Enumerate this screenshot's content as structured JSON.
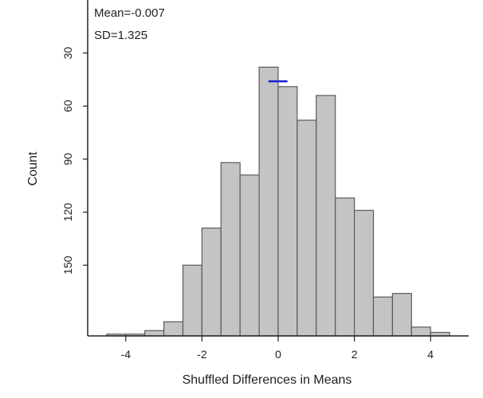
{
  "chart_data": {
    "type": "bar",
    "subtype": "histogram",
    "title": "",
    "xlabel": "Shuffled Differences in Means",
    "ylabel": "Count",
    "xlim": [
      -5,
      5
    ],
    "ylim": [
      0,
      190
    ],
    "y_axis_reversed": true,
    "x_ticks": [
      "-4",
      "-2",
      "0",
      "2",
      "4"
    ],
    "y_ticks": [
      "30",
      "60",
      "90",
      "120",
      "150"
    ],
    "bin_width": 0.5,
    "bins": [
      {
        "x0": -4.5,
        "x1": -4.0,
        "count": 1
      },
      {
        "x0": -4.0,
        "x1": -3.5,
        "count": 1
      },
      {
        "x0": -3.5,
        "x1": -3.0,
        "count": 3
      },
      {
        "x0": -3.0,
        "x1": -2.5,
        "count": 8
      },
      {
        "x0": -2.5,
        "x1": -2.0,
        "count": 40
      },
      {
        "x0": -2.0,
        "x1": -1.5,
        "count": 61
      },
      {
        "x0": -1.5,
        "x1": -1.0,
        "count": 98
      },
      {
        "x0": -1.0,
        "x1": -0.5,
        "count": 91
      },
      {
        "x0": -0.5,
        "x1": 0.0,
        "count": 152
      },
      {
        "x0": 0.0,
        "x1": 0.5,
        "count": 141
      },
      {
        "x0": 0.5,
        "x1": 1.0,
        "count": 122
      },
      {
        "x0": 1.0,
        "x1": 1.5,
        "count": 136
      },
      {
        "x0": 1.5,
        "x1": 2.0,
        "count": 78
      },
      {
        "x0": 2.0,
        "x1": 2.5,
        "count": 71
      },
      {
        "x0": 2.5,
        "x1": 3.0,
        "count": 22
      },
      {
        "x0": 3.0,
        "x1": 3.5,
        "count": 24
      },
      {
        "x0": 3.5,
        "x1": 4.0,
        "count": 5
      },
      {
        "x0": 4.0,
        "x1": 4.5,
        "count": 2
      }
    ],
    "mean_marker": {
      "x": -0.007,
      "y": 144
    },
    "stats": {
      "mean": "Mean=-0.007",
      "sd": "SD=1.325"
    },
    "colors": {
      "bar_fill": "#c4c4c4",
      "bar_stroke": "#5a5a5a",
      "axis": "#222222",
      "mean_marker": "#1a22d6"
    },
    "grid": false,
    "legend": "none"
  }
}
